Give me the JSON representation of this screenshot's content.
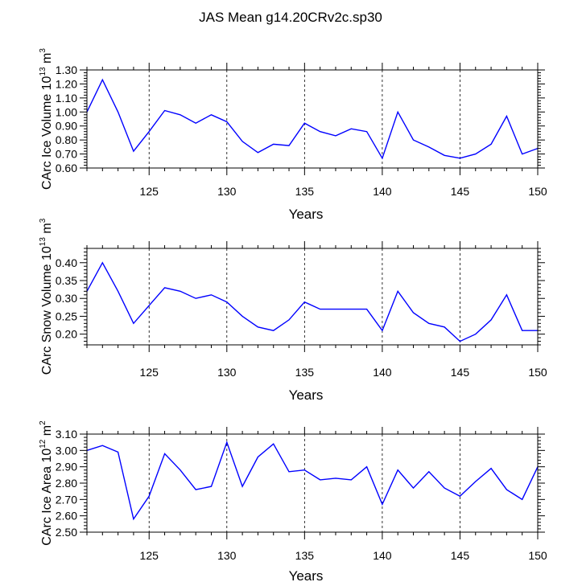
{
  "chart_data": {
    "title": "JAS Mean g14.20CRv2c.sp30",
    "xlabel": "Years",
    "x_ticks": [
      125,
      130,
      135,
      140,
      145,
      150
    ],
    "x_range": [
      121,
      150
    ],
    "line_color": "#0000ff",
    "panels": [
      {
        "type": "line",
        "ylabel": {
          "main": "CArc Ice Volume 10",
          "sup1": "13",
          "mid": " m",
          "sup2": "3"
        },
        "ylim": [
          0.6,
          1.3
        ],
        "y_ticks": [
          "0.60",
          "0.70",
          "0.80",
          "0.90",
          "1.00",
          "1.10",
          "1.20",
          "1.30"
        ],
        "x": [
          121,
          122,
          123,
          124,
          125,
          126,
          127,
          128,
          129,
          130,
          131,
          132,
          133,
          134,
          135,
          136,
          137,
          138,
          139,
          140,
          141,
          142,
          143,
          144,
          145,
          146,
          147,
          148,
          149,
          150
        ],
        "values": [
          1.0,
          1.23,
          1.0,
          0.72,
          0.86,
          1.01,
          0.98,
          0.92,
          0.98,
          0.93,
          0.79,
          0.71,
          0.77,
          0.76,
          0.92,
          0.86,
          0.83,
          0.88,
          0.86,
          0.67,
          1.0,
          0.8,
          0.75,
          0.69,
          0.67,
          0.7,
          0.77,
          0.97,
          0.7,
          0.74
        ]
      },
      {
        "type": "line",
        "ylabel": {
          "main": "CArc Snow Volume 10",
          "sup1": "13",
          "mid": " m",
          "sup2": "3"
        },
        "ylim": [
          0.17,
          0.44
        ],
        "y_ticks": [
          "0.20",
          "0.25",
          "0.30",
          "0.35",
          "0.40"
        ],
        "x": [
          121,
          122,
          123,
          124,
          125,
          126,
          127,
          128,
          129,
          130,
          131,
          132,
          133,
          134,
          135,
          136,
          137,
          138,
          139,
          140,
          141,
          142,
          143,
          144,
          145,
          146,
          147,
          148,
          149,
          150
        ],
        "values": [
          0.32,
          0.4,
          0.32,
          0.23,
          0.28,
          0.33,
          0.32,
          0.3,
          0.31,
          0.29,
          0.25,
          0.22,
          0.21,
          0.24,
          0.29,
          0.27,
          0.27,
          0.27,
          0.27,
          0.21,
          0.32,
          0.26,
          0.23,
          0.22,
          0.18,
          0.2,
          0.24,
          0.31,
          0.21,
          0.21
        ]
      },
      {
        "type": "line",
        "ylabel": {
          "main": "CArc Ice Area 10",
          "sup1": "12",
          "mid": " m",
          "sup2": "2"
        },
        "ylim": [
          2.5,
          3.1
        ],
        "y_ticks": [
          "2.50",
          "2.60",
          "2.70",
          "2.80",
          "2.90",
          "3.00",
          "3.10"
        ],
        "x": [
          121,
          122,
          123,
          124,
          125,
          126,
          127,
          128,
          129,
          130,
          131,
          132,
          133,
          134,
          135,
          136,
          137,
          138,
          139,
          140,
          141,
          142,
          143,
          144,
          145,
          146,
          147,
          148,
          149,
          150
        ],
        "values": [
          3.0,
          3.03,
          2.99,
          2.58,
          2.72,
          2.98,
          2.88,
          2.76,
          2.78,
          3.05,
          2.78,
          2.96,
          3.04,
          2.87,
          2.88,
          2.82,
          2.83,
          2.82,
          2.9,
          2.67,
          2.88,
          2.77,
          2.87,
          2.77,
          2.72,
          2.81,
          2.89,
          2.76,
          2.7,
          2.9
        ]
      }
    ]
  }
}
